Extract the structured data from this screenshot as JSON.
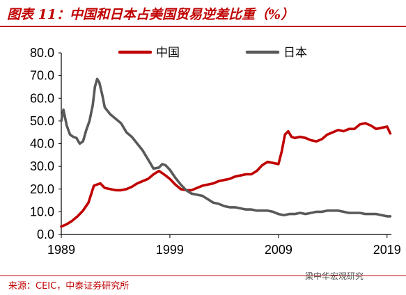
{
  "title": "图表 11：中国和日本占美国贸易逆差比重（%）",
  "source": "来源：CEIC，中泰证券研究所",
  "watermark": "梁中华宏观研究",
  "colors": {
    "china": "#c00000",
    "japan": "#595959",
    "accent": "#c00000"
  },
  "chart_data": {
    "type": "line",
    "xlim": [
      1989,
      2019.4
    ],
    "ylim": [
      0,
      80
    ],
    "xticks": [
      "1989",
      "1999",
      "2009",
      "2019"
    ],
    "yticks": [
      "0.0",
      "10.0",
      "20.0",
      "30.0",
      "40.0",
      "50.0",
      "60.0",
      "70.0",
      "80.0"
    ],
    "grid": false,
    "legend_position": "top",
    "series": [
      {
        "name": "中国",
        "color": "#c00000",
        "x": [
          1989.0,
          1989.5,
          1990.0,
          1990.5,
          1991.0,
          1991.5,
          1992.0,
          1992.3,
          1992.6,
          1993.0,
          1993.5,
          1994.0,
          1994.5,
          1995.0,
          1995.5,
          1996.0,
          1996.5,
          1997.0,
          1997.5,
          1998.0,
          1998.3,
          1998.6,
          1999.0,
          1999.5,
          2000.0,
          2000.5,
          2001.0,
          2001.5,
          2002.0,
          2002.5,
          2003.0,
          2003.5,
          2004.0,
          2004.5,
          2005.0,
          2005.5,
          2006.0,
          2006.5,
          2007.0,
          2007.5,
          2008.0,
          2008.5,
          2009.0,
          2009.3,
          2009.6,
          2009.9,
          2010.2,
          2010.5,
          2011.0,
          2011.5,
          2012.0,
          2012.5,
          2013.0,
          2013.5,
          2014.0,
          2014.5,
          2015.0,
          2015.5,
          2016.0,
          2016.5,
          2017.0,
          2017.5,
          2018.0,
          2018.5,
          2019.0,
          2019.3
        ],
        "values": [
          3.5,
          4.5,
          6.0,
          8.0,
          10.5,
          14.0,
          21.5,
          22.0,
          22.5,
          20.5,
          20.0,
          19.5,
          19.5,
          20.0,
          21.0,
          22.5,
          23.5,
          24.5,
          26.5,
          28.0,
          27.0,
          26.0,
          24.5,
          22.0,
          20.0,
          19.5,
          19.5,
          20.5,
          21.5,
          22.0,
          22.5,
          23.5,
          24.0,
          24.5,
          25.5,
          26.0,
          26.5,
          26.5,
          28.0,
          30.5,
          32.0,
          31.5,
          31.0,
          36.5,
          44.0,
          45.5,
          43.0,
          42.5,
          43.0,
          42.5,
          41.5,
          41.0,
          42.0,
          44.0,
          45.0,
          46.0,
          45.5,
          46.5,
          46.5,
          48.5,
          49.0,
          48.0,
          46.5,
          47.0,
          47.5,
          44.5
        ]
      },
      {
        "name": "日本",
        "color": "#595959",
        "x": [
          1989.0,
          1989.2,
          1989.5,
          1989.8,
          1990.1,
          1990.4,
          1990.7,
          1991.0,
          1991.3,
          1991.6,
          1991.9,
          1992.1,
          1992.3,
          1992.5,
          1992.8,
          1993.0,
          1993.5,
          1994.0,
          1994.5,
          1995.0,
          1995.5,
          1996.0,
          1996.5,
          1997.0,
          1997.5,
          1998.0,
          1998.3,
          1998.6,
          1999.0,
          1999.5,
          2000.0,
          2000.5,
          2001.0,
          2001.5,
          2002.0,
          2002.5,
          2003.0,
          2003.5,
          2004.0,
          2004.5,
          2005.0,
          2005.5,
          2006.0,
          2006.5,
          2007.0,
          2007.5,
          2008.0,
          2008.5,
          2009.0,
          2009.5,
          2010.0,
          2010.5,
          2011.0,
          2011.5,
          2012.0,
          2012.5,
          2013.0,
          2013.5,
          2014.0,
          2014.5,
          2015.0,
          2015.5,
          2016.0,
          2016.5,
          2017.0,
          2017.5,
          2018.0,
          2018.5,
          2019.0,
          2019.3
        ],
        "values": [
          50.0,
          55.0,
          48.0,
          44.0,
          43.0,
          42.5,
          40.0,
          41.0,
          46.0,
          50.0,
          57.0,
          65.0,
          68.5,
          67.0,
          61.0,
          56.0,
          53.0,
          51.0,
          49.0,
          45.0,
          43.0,
          40.0,
          37.0,
          33.0,
          29.0,
          29.5,
          31.0,
          30.5,
          28.5,
          25.0,
          22.0,
          19.5,
          18.0,
          17.5,
          17.0,
          15.5,
          14.0,
          13.5,
          12.5,
          12.0,
          12.0,
          11.5,
          11.0,
          11.0,
          10.5,
          10.5,
          10.5,
          10.0,
          9.0,
          8.5,
          9.0,
          9.0,
          9.5,
          9.0,
          9.5,
          10.0,
          10.0,
          10.5,
          10.5,
          10.5,
          10.0,
          9.5,
          9.5,
          9.5,
          9.0,
          9.0,
          9.0,
          8.5,
          8.0,
          8.0
        ]
      }
    ]
  }
}
